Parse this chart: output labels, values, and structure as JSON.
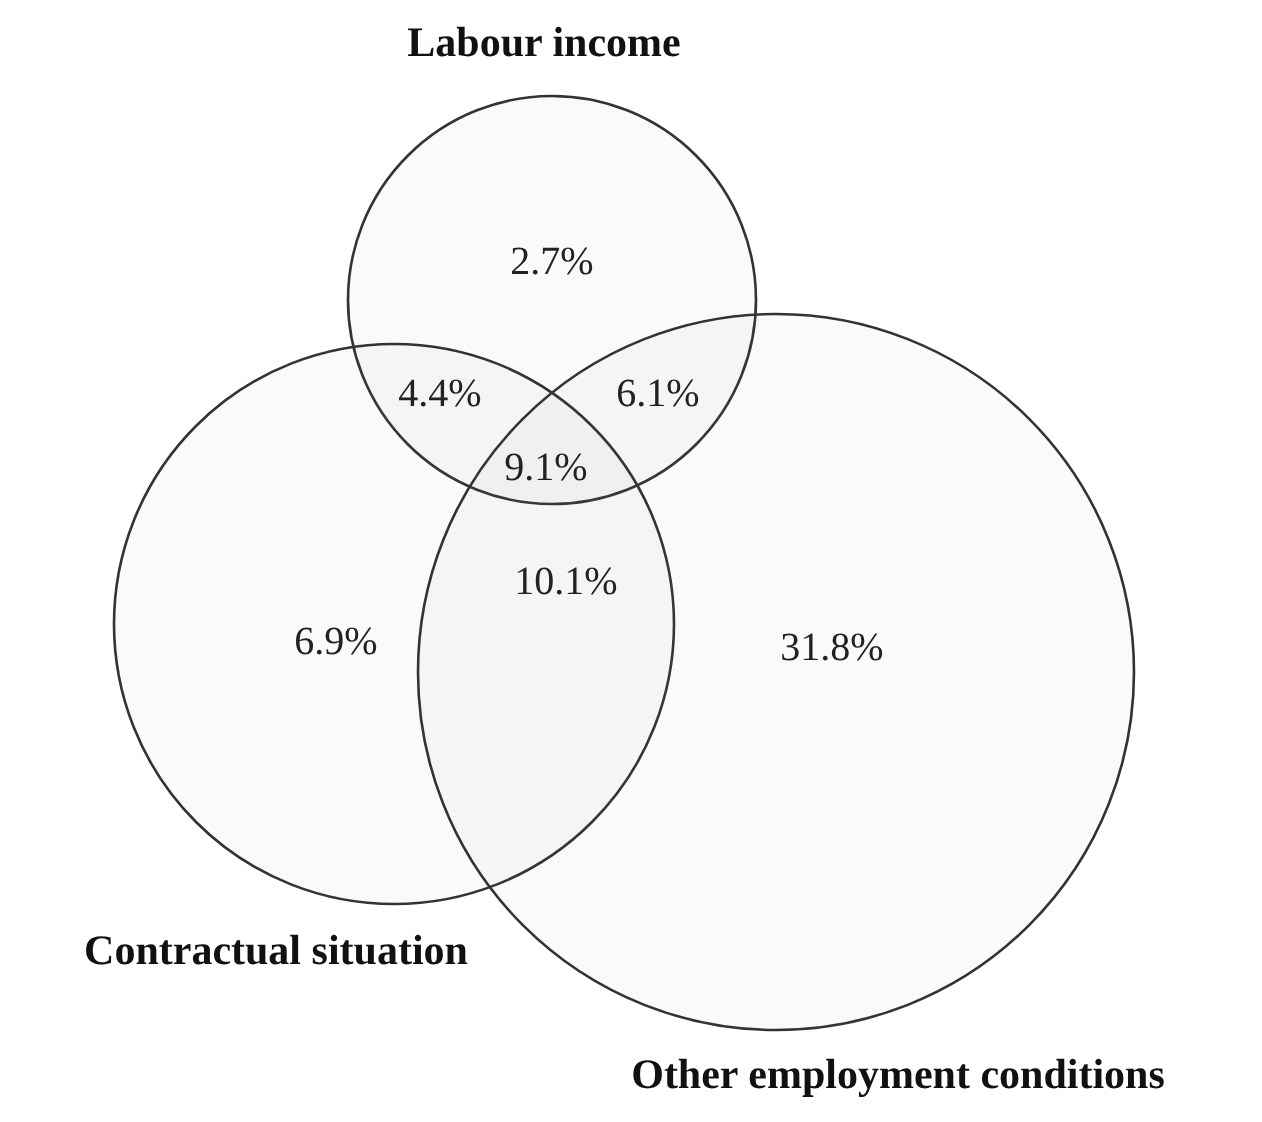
{
  "chart_data": {
    "type": "other",
    "categories": [
      null,
      null,
      null,
      null,
      null,
      null,
      null
    ],
    "values": [
      2.7,
      4.4,
      6.1,
      9.1,
      10.1,
      6.9,
      31.8
    ],
    "value_labels": [
      "2.7%",
      "4.4%",
      "6.1%",
      "9.1%",
      "10.1%",
      "6.9%",
      "31.8%"
    ],
    "annotations": [
      "Labour income",
      "Contractual situation",
      "Other employment conditions"
    ]
  }
}
